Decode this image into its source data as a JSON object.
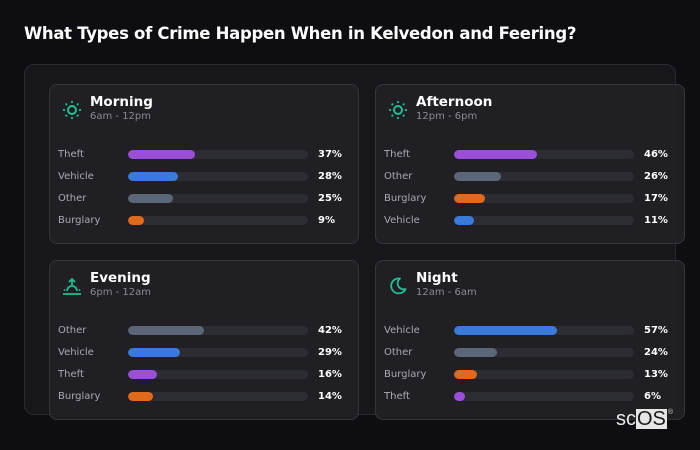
{
  "title": "What Types of Crime Happen When in Kelvedon and Feering?",
  "colors": {
    "Theft": "#9b4fd8",
    "Vehicle": "#3a7ad9",
    "Other": "#5c6679",
    "Burglary": "#e06a1c",
    "icon_accent": "#1fbf8f",
    "track": "#2c2c33"
  },
  "cards": [
    {
      "name": "Morning",
      "time": "6am - 12pm",
      "icon": "sun-icon",
      "rows": [
        {
          "label": "Theft",
          "pct": "37%",
          "value": 37
        },
        {
          "label": "Vehicle",
          "pct": "28%",
          "value": 28
        },
        {
          "label": "Other",
          "pct": "25%",
          "value": 25
        },
        {
          "label": "Burglary",
          "pct": "9%",
          "value": 9
        }
      ]
    },
    {
      "name": "Afternoon",
      "time": "12pm - 6pm",
      "icon": "sun-icon",
      "rows": [
        {
          "label": "Theft",
          "pct": "46%",
          "value": 46
        },
        {
          "label": "Other",
          "pct": "26%",
          "value": 26
        },
        {
          "label": "Burglary",
          "pct": "17%",
          "value": 17
        },
        {
          "label": "Vehicle",
          "pct": "11%",
          "value": 11
        }
      ]
    },
    {
      "name": "Evening",
      "time": "6pm - 12am",
      "icon": "sunset-icon",
      "rows": [
        {
          "label": "Other",
          "pct": "42%",
          "value": 42
        },
        {
          "label": "Vehicle",
          "pct": "29%",
          "value": 29
        },
        {
          "label": "Theft",
          "pct": "16%",
          "value": 16
        },
        {
          "label": "Burglary",
          "pct": "14%",
          "value": 14
        }
      ]
    },
    {
      "name": "Night",
      "time": "12am - 6am",
      "icon": "moon-icon",
      "rows": [
        {
          "label": "Vehicle",
          "pct": "57%",
          "value": 57
        },
        {
          "label": "Other",
          "pct": "24%",
          "value": 24
        },
        {
          "label": "Burglary",
          "pct": "13%",
          "value": 13
        },
        {
          "label": "Theft",
          "pct": "6%",
          "value": 6
        }
      ]
    }
  ],
  "brand": {
    "sc": "sc",
    "os": "OS",
    "reg": "®"
  },
  "chart_data": [
    {
      "type": "bar",
      "title": "Morning",
      "subtitle": "6am - 12pm",
      "categories": [
        "Theft",
        "Vehicle",
        "Other",
        "Burglary"
      ],
      "values": [
        37,
        28,
        25,
        9
      ],
      "ylim": [
        0,
        100
      ],
      "unit": "%"
    },
    {
      "type": "bar",
      "title": "Afternoon",
      "subtitle": "12pm - 6pm",
      "categories": [
        "Theft",
        "Other",
        "Burglary",
        "Vehicle"
      ],
      "values": [
        46,
        26,
        17,
        11
      ],
      "ylim": [
        0,
        100
      ],
      "unit": "%"
    },
    {
      "type": "bar",
      "title": "Evening",
      "subtitle": "6pm - 12am",
      "categories": [
        "Other",
        "Vehicle",
        "Theft",
        "Burglary"
      ],
      "values": [
        42,
        29,
        16,
        14
      ],
      "ylim": [
        0,
        100
      ],
      "unit": "%"
    },
    {
      "type": "bar",
      "title": "Night",
      "subtitle": "12am - 6am",
      "categories": [
        "Vehicle",
        "Other",
        "Burglary",
        "Theft"
      ],
      "values": [
        57,
        24,
        13,
        6
      ],
      "ylim": [
        0,
        100
      ],
      "unit": "%"
    }
  ]
}
